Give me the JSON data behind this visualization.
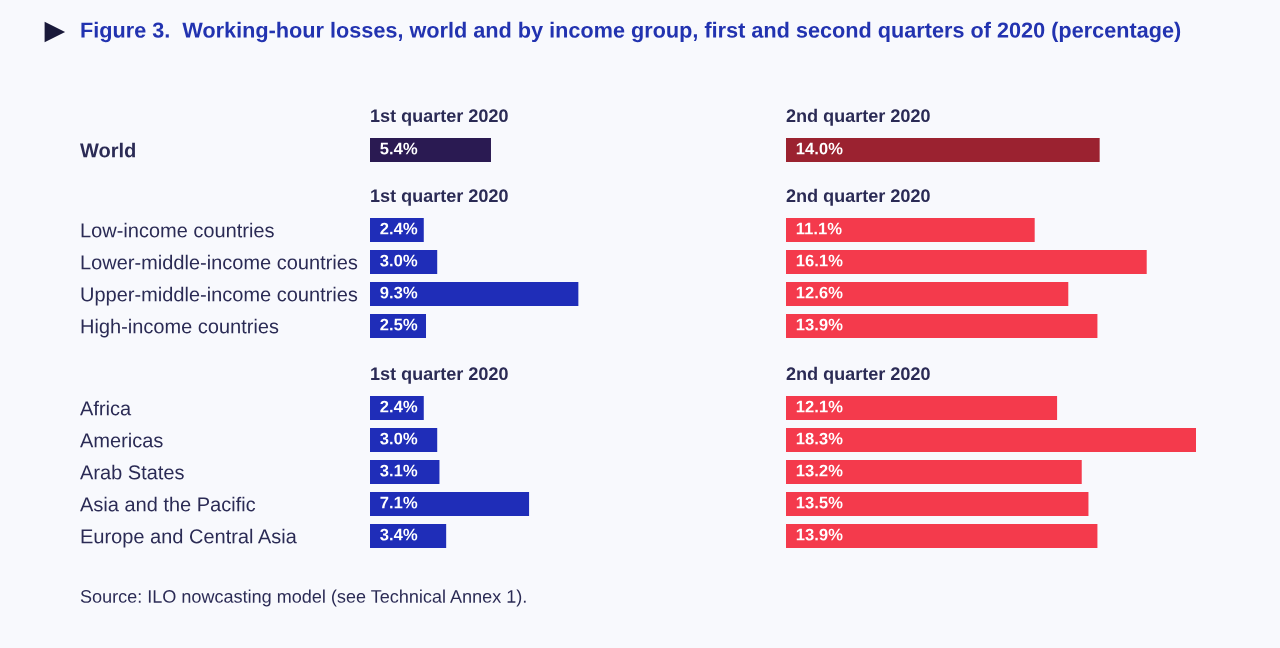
{
  "chart_data": [
    {
      "type": "bar",
      "orientation": "horizontal",
      "title": "Figure 3.  Working-hour losses, world and by income group, first and second quarters of 2020 (percentage)",
      "subtitle": "1st quarter 2020",
      "categories": [
        "World"
      ],
      "values": [
        5.4
      ],
      "value_labels": [
        "5.4%"
      ],
      "color": "#2a1a52",
      "tick_labels": "y",
      "annotations": [
        "Source: ILO nowcasting model (see Technical Annex 1)."
      ]
    },
    {
      "type": "bar",
      "orientation": "horizontal",
      "subtitle": "2nd quarter 2020",
      "categories": [
        null
      ],
      "values": [
        14.0
      ],
      "value_labels": [
        "14.0%"
      ],
      "color": "#9b2230"
    },
    {
      "type": "bar",
      "orientation": "horizontal",
      "subtitle": "1st quarter 2020",
      "categories": [
        "Low-income countries",
        "Lower-middle-income countries",
        "Upper-middle-income countries",
        "High-income countries"
      ],
      "values": [
        2.4,
        3.0,
        9.3,
        2.5
      ],
      "value_labels": [
        "2.4%",
        "3.0%",
        "9.3%",
        "2.5%"
      ],
      "color": "#1f2db8",
      "tick_labels": "y"
    },
    {
      "type": "bar",
      "orientation": "horizontal",
      "subtitle": "2nd quarter 2020",
      "categories": [
        null,
        null,
        null,
        null
      ],
      "values": [
        11.1,
        16.1,
        12.6,
        13.9
      ],
      "value_labels": [
        "11.1%",
        "16.1%",
        "12.6%",
        "13.9%"
      ],
      "color": "#f43a4c"
    },
    {
      "type": "bar",
      "orientation": "horizontal",
      "subtitle": "1st quarter 2020",
      "categories": [
        "Africa",
        "Americas",
        "Arab States",
        "Asia and the Pacific",
        "Europe and Central Asia"
      ],
      "values": [
        2.4,
        3.0,
        3.1,
        7.1,
        3.4
      ],
      "value_labels": [
        "2.4%",
        "3.0%",
        "3.1%",
        "7.1%",
        "3.4%"
      ],
      "color": "#1f2db8",
      "tick_labels": "y"
    },
    {
      "type": "bar",
      "orientation": "horizontal",
      "subtitle": "2nd quarter 2020",
      "categories": [
        null,
        null,
        null,
        null,
        null
      ],
      "values": [
        12.1,
        18.3,
        13.2,
        13.5,
        13.9
      ],
      "value_labels": [
        "12.1%",
        "18.3%",
        "13.2%",
        "13.5%",
        "13.9%"
      ],
      "color": "#f43a4c"
    }
  ]
}
